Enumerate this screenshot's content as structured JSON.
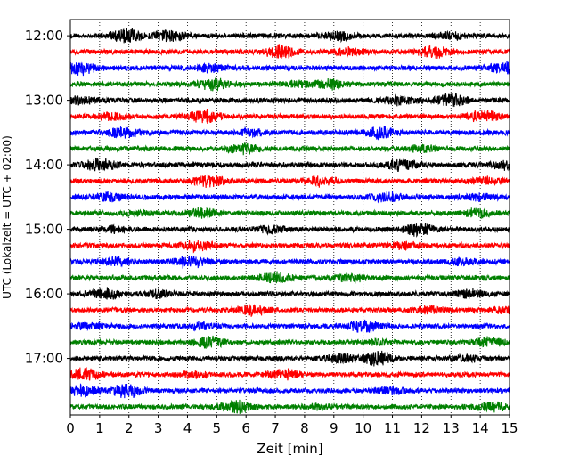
{
  "chart_data": {
    "type": "line",
    "title": "",
    "xlabel": "Zeit  [min]",
    "ylabel": "UTC (Lokalzeit = UTC + 02:00)",
    "xlim": [
      0,
      15
    ],
    "x_ticks": [
      0,
      1,
      2,
      3,
      4,
      5,
      6,
      7,
      8,
      9,
      10,
      11,
      12,
      13,
      14,
      15
    ],
    "y_tick_labels": [
      "12:00",
      "13:00",
      "14:00",
      "15:00",
      "16:00",
      "17:00"
    ],
    "start_time": "12:00",
    "trace_minutes": 15,
    "grid": "vertical dotted lines at each minute",
    "colors": [
      "#000000",
      "#ff0000",
      "#0000ff",
      "#008000"
    ],
    "traces": [
      {
        "start": "12:00",
        "color": "#000000",
        "events": [
          {
            "t": 1.9,
            "a": 1.0
          },
          {
            "t": 3.4,
            "a": 0.8
          },
          {
            "t": 9.2,
            "a": 0.6
          },
          {
            "t": 13.0,
            "a": 0.5
          }
        ]
      },
      {
        "start": "12:15",
        "color": "#ff0000",
        "events": [
          {
            "t": 7.2,
            "a": 0.95
          },
          {
            "t": 12.4,
            "a": 0.8
          },
          {
            "t": 9.5,
            "a": 0.5
          }
        ]
      },
      {
        "start": "12:30",
        "color": "#0000ff",
        "events": [
          {
            "t": 0.3,
            "a": 0.9
          },
          {
            "t": 14.8,
            "a": 0.7
          },
          {
            "t": 4.8,
            "a": 0.5
          }
        ]
      },
      {
        "start": "12:45",
        "color": "#008000",
        "events": [
          {
            "t": 4.9,
            "a": 0.8
          },
          {
            "t": 8.9,
            "a": 0.7
          },
          {
            "t": 7.8,
            "a": 0.4
          }
        ]
      },
      {
        "start": "13:00",
        "color": "#000000",
        "events": [
          {
            "t": 13.0,
            "a": 1.0
          },
          {
            "t": 11.2,
            "a": 0.6
          },
          {
            "t": 0.4,
            "a": 0.5
          }
        ]
      },
      {
        "start": "13:15",
        "color": "#ff0000",
        "events": [
          {
            "t": 14.1,
            "a": 0.9
          },
          {
            "t": 4.6,
            "a": 0.9
          },
          {
            "t": 1.5,
            "a": 0.5
          }
        ]
      },
      {
        "start": "13:30",
        "color": "#0000ff",
        "events": [
          {
            "t": 10.6,
            "a": 0.9
          },
          {
            "t": 1.8,
            "a": 0.8
          },
          {
            "t": 6.1,
            "a": 0.5
          }
        ]
      },
      {
        "start": "13:45",
        "color": "#008000",
        "events": [
          {
            "t": 5.9,
            "a": 0.7
          },
          {
            "t": 12.0,
            "a": 0.4
          }
        ]
      },
      {
        "start": "14:00",
        "color": "#000000",
        "events": [
          {
            "t": 1.0,
            "a": 0.9
          },
          {
            "t": 11.3,
            "a": 0.8
          },
          {
            "t": 14.9,
            "a": 0.6
          }
        ]
      },
      {
        "start": "14:15",
        "color": "#ff0000",
        "events": [
          {
            "t": 4.7,
            "a": 0.8
          },
          {
            "t": 8.6,
            "a": 0.7
          },
          {
            "t": 14.2,
            "a": 0.5
          }
        ]
      },
      {
        "start": "14:30",
        "color": "#0000ff",
        "events": [
          {
            "t": 1.3,
            "a": 0.6
          },
          {
            "t": 10.8,
            "a": 0.7
          },
          {
            "t": 14.0,
            "a": 0.4
          }
        ]
      },
      {
        "start": "14:45",
        "color": "#008000",
        "events": [
          {
            "t": 4.5,
            "a": 0.6
          },
          {
            "t": 13.9,
            "a": 0.6
          },
          {
            "t": 2.3,
            "a": 0.3
          }
        ]
      },
      {
        "start": "15:00",
        "color": "#000000",
        "events": [
          {
            "t": 11.9,
            "a": 0.9
          },
          {
            "t": 6.8,
            "a": 0.5
          },
          {
            "t": 1.4,
            "a": 0.4
          }
        ]
      },
      {
        "start": "15:15",
        "color": "#ff0000",
        "events": [
          {
            "t": 4.3,
            "a": 0.8
          },
          {
            "t": 11.4,
            "a": 0.5
          }
        ]
      },
      {
        "start": "15:30",
        "color": "#0000ff",
        "events": [
          {
            "t": 4.1,
            "a": 0.9
          },
          {
            "t": 1.6,
            "a": 0.6
          },
          {
            "t": 13.4,
            "a": 0.4
          }
        ]
      },
      {
        "start": "15:45",
        "color": "#008000",
        "events": [
          {
            "t": 7.0,
            "a": 0.8
          },
          {
            "t": 9.6,
            "a": 0.5
          }
        ]
      },
      {
        "start": "16:00",
        "color": "#000000",
        "events": [
          {
            "t": 1.2,
            "a": 0.8
          },
          {
            "t": 13.7,
            "a": 0.6
          },
          {
            "t": 3.0,
            "a": 0.5
          }
        ]
      },
      {
        "start": "16:15",
        "color": "#ff0000",
        "events": [
          {
            "t": 6.2,
            "a": 0.8
          },
          {
            "t": 12.3,
            "a": 0.5
          },
          {
            "t": 14.9,
            "a": 0.4
          }
        ]
      },
      {
        "start": "16:30",
        "color": "#0000ff",
        "events": [
          {
            "t": 10.0,
            "a": 0.9
          },
          {
            "t": 4.5,
            "a": 0.5
          },
          {
            "t": 0.6,
            "a": 0.4
          }
        ]
      },
      {
        "start": "16:45",
        "color": "#008000",
        "events": [
          {
            "t": 4.8,
            "a": 0.8
          },
          {
            "t": 14.3,
            "a": 0.6
          },
          {
            "t": 10.5,
            "a": 0.3
          }
        ]
      },
      {
        "start": "17:00",
        "color": "#000000",
        "events": [
          {
            "t": 10.5,
            "a": 1.0
          },
          {
            "t": 9.2,
            "a": 0.6
          },
          {
            "t": 13.6,
            "a": 0.4
          }
        ]
      },
      {
        "start": "17:15",
        "color": "#ff0000",
        "events": [
          {
            "t": 0.5,
            "a": 0.9
          },
          {
            "t": 7.3,
            "a": 0.7
          },
          {
            "t": 4.2,
            "a": 0.4
          }
        ]
      },
      {
        "start": "17:30",
        "color": "#0000ff",
        "events": [
          {
            "t": 1.9,
            "a": 1.0
          },
          {
            "t": 10.9,
            "a": 0.5
          },
          {
            "t": 0.4,
            "a": 0.7
          }
        ]
      },
      {
        "start": "17:45",
        "color": "#008000",
        "events": [
          {
            "t": 5.6,
            "a": 1.0
          },
          {
            "t": 14.4,
            "a": 0.6
          },
          {
            "t": 8.6,
            "a": 0.3
          }
        ]
      }
    ]
  }
}
